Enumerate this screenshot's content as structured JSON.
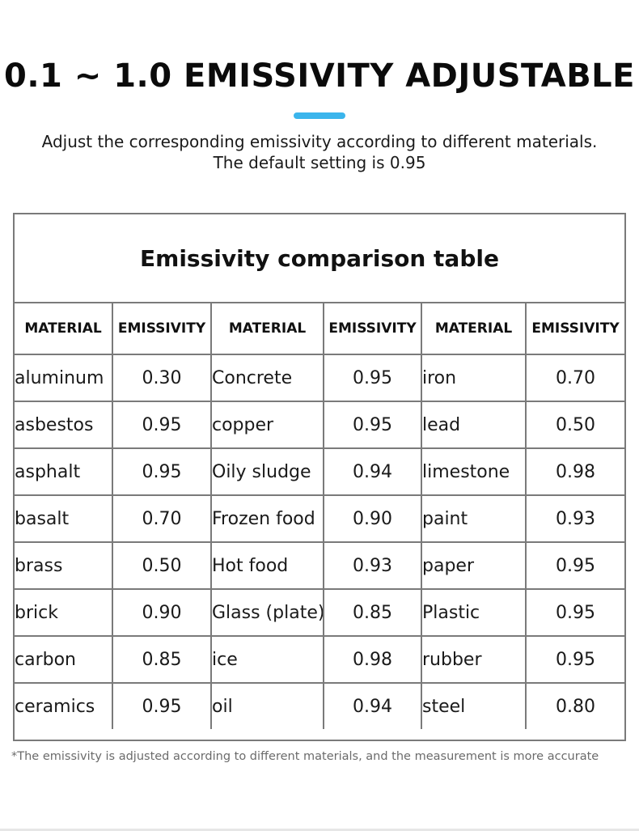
{
  "header": {
    "title": "0.1 ~ 1.0 EMISSIVITY ADJUSTABLE",
    "accent_color": "#3bb5ec",
    "subtitle_line1": "Adjust the corresponding emissivity according to different materials.",
    "subtitle_line2": "The default setting is 0.95"
  },
  "table": {
    "caption": "Emissivity comparison table",
    "headers": [
      "MATERIAL",
      "EMISSIVITY",
      "MATERIAL",
      "EMISSIVITY",
      "MATERIAL",
      "EMISSIVITY"
    ],
    "rows": [
      [
        "aluminum",
        "0.30",
        "Concrete",
        "0.95",
        "iron",
        "0.70"
      ],
      [
        "asbestos",
        "0.95",
        "copper",
        "0.95",
        "lead",
        "0.50"
      ],
      [
        "asphalt",
        "0.95",
        "Oily sludge",
        "0.94",
        "limestone",
        "0.98"
      ],
      [
        "basalt",
        "0.70",
        "Frozen food",
        "0.90",
        "paint",
        "0.93"
      ],
      [
        "brass",
        "0.50",
        "Hot food",
        "0.93",
        "paper",
        "0.95"
      ],
      [
        "brick",
        "0.90",
        "Glass (plate)",
        "0.85",
        "Plastic",
        "0.95"
      ],
      [
        "carbon",
        "0.85",
        "ice",
        "0.98",
        "rubber",
        "0.95"
      ],
      [
        "ceramics",
        "0.95",
        "oil",
        "0.94",
        "steel",
        "0.80"
      ]
    ]
  },
  "footnote": "*The emissivity is adjusted according to different materials, and the measurement is more accurate"
}
